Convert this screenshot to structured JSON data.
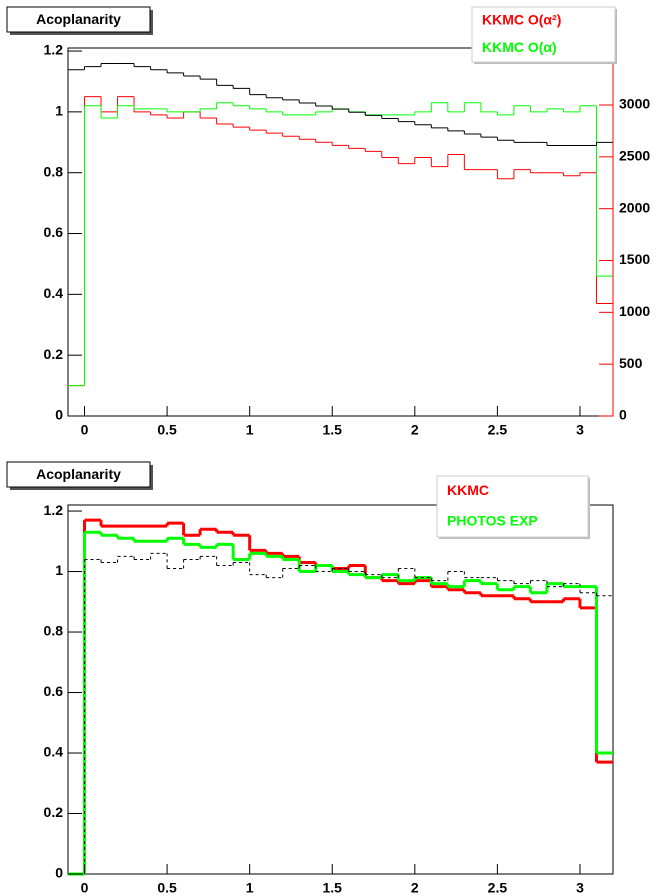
{
  "chart_data": [
    {
      "type": "histogram",
      "title": "Acoplanarity",
      "bins": [
        -0.1,
        0,
        0.1,
        0.2,
        0.3,
        0.4,
        0.5,
        0.6,
        0.7,
        0.8,
        0.9,
        1.0,
        1.1,
        1.2,
        1.3,
        1.4,
        1.5,
        1.6,
        1.7,
        1.8,
        1.9,
        2.0,
        2.1,
        2.2,
        2.3,
        2.4,
        2.5,
        2.6,
        2.7,
        2.8,
        2.9,
        3.0,
        3.1,
        3.2
      ],
      "series": [
        {
          "name": "KKMC O(α²)",
          "color": "#ff0000",
          "values": [
            0.1,
            1.05,
            1.0,
            1.05,
            1.0,
            0.99,
            0.98,
            1.0,
            0.98,
            0.96,
            0.95,
            0.94,
            0.93,
            0.92,
            0.91,
            0.9,
            0.89,
            0.88,
            0.87,
            0.85,
            0.83,
            0.85,
            0.82,
            0.86,
            0.81,
            0.81,
            0.78,
            0.81,
            0.8,
            0.8,
            0.79,
            0.8,
            0.37
          ]
        },
        {
          "name": "KKMC O(α)",
          "color": "#00ff00",
          "values": [
            0.1,
            1.02,
            0.98,
            1.02,
            1.01,
            1.01,
            1.0,
            1.0,
            1.01,
            1.03,
            1.02,
            1.01,
            1.0,
            0.99,
            0.99,
            1.0,
            1.01,
            1.0,
            0.99,
            0.99,
            0.99,
            1.0,
            1.03,
            1.0,
            1.03,
            1.0,
            0.99,
            1.02,
            1.0,
            1.01,
            1.0,
            1.02,
            0.46
          ]
        },
        {
          "color": "#000000",
          "axis": "y2",
          "values": [
            3340,
            3370,
            3400,
            3400,
            3370,
            3340,
            3310,
            3280,
            3250,
            3190,
            3160,
            3100,
            3070,
            3050,
            3020,
            2990,
            2960,
            2930,
            2900,
            2870,
            2840,
            2810,
            2780,
            2750,
            2720,
            2690,
            2660,
            2640,
            2640,
            2610,
            2610,
            2610,
            2640
          ]
        }
      ],
      "xlim": [
        -0.1,
        3.2
      ],
      "xticks": [
        0,
        0.5,
        1,
        1.5,
        2,
        2.5,
        3
      ],
      "ylim": [
        0,
        1.21
      ],
      "yticks": [
        0,
        0.2,
        0.4,
        0.6,
        0.8,
        1,
        1.2
      ],
      "y2lim": [
        0,
        3550
      ],
      "y2ticks": [
        0,
        500,
        1000,
        1500,
        2000,
        2500,
        3000
      ],
      "y2color": "#ff0000"
    },
    {
      "type": "histogram",
      "title": "Acoplanarity",
      "bins": [
        -0.1,
        0,
        0.1,
        0.2,
        0.3,
        0.4,
        0.5,
        0.6,
        0.7,
        0.8,
        0.9,
        1.0,
        1.1,
        1.2,
        1.3,
        1.4,
        1.5,
        1.6,
        1.7,
        1.8,
        1.9,
        2.0,
        2.1,
        2.2,
        2.3,
        2.4,
        2.5,
        2.6,
        2.7,
        2.8,
        2.9,
        3.0,
        3.1,
        3.2
      ],
      "series": [
        {
          "name": "KKMC",
          "color": "#ff0000",
          "width": 3,
          "values": [
            0,
            1.17,
            1.15,
            1.15,
            1.15,
            1.15,
            1.16,
            1.12,
            1.14,
            1.13,
            1.12,
            1.07,
            1.06,
            1.05,
            1.03,
            1.02,
            1.01,
            1.02,
            0.98,
            0.97,
            0.96,
            0.97,
            0.95,
            0.94,
            0.93,
            0.92,
            0.92,
            0.91,
            0.9,
            0.9,
            0.91,
            0.88,
            0.37
          ]
        },
        {
          "name": "PHOTOS EXP",
          "color": "#00ff00",
          "width": 3,
          "values": [
            0,
            1.13,
            1.12,
            1.11,
            1.1,
            1.1,
            1.11,
            1.09,
            1.08,
            1.09,
            1.04,
            1.06,
            1.05,
            1.04,
            1.0,
            1.02,
            1.0,
            0.99,
            0.98,
            0.99,
            0.97,
            0.98,
            0.96,
            0.95,
            0.97,
            0.96,
            0.94,
            0.95,
            0.93,
            0.96,
            0.95,
            0.95,
            0.4
          ]
        },
        {
          "color": "#000000",
          "dashed": true,
          "values": [
            0,
            1.04,
            1.03,
            1.05,
            1.04,
            1.06,
            1.01,
            1.04,
            1.05,
            1.02,
            1.03,
            0.99,
            0.98,
            1.01,
            1.02,
            1.0,
            1.01,
            1.0,
            0.99,
            0.98,
            1.01,
            0.98,
            0.97,
            1.0,
            0.98,
            0.98,
            0.97,
            0.96,
            0.97,
            0.95,
            0.96,
            0.93,
            0.92
          ]
        }
      ],
      "xlim": [
        -0.1,
        3.2
      ],
      "xticks": [
        0,
        0.5,
        1,
        1.5,
        2,
        2.5,
        3
      ],
      "ylim": [
        0,
        1.22
      ],
      "yticks": [
        0,
        0.2,
        0.4,
        0.6,
        0.8,
        1,
        1.2
      ]
    }
  ]
}
